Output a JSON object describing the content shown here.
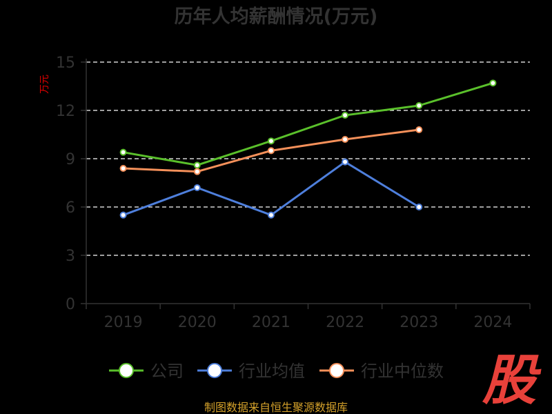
{
  "chart_data": {
    "type": "line",
    "title": "历年人均薪酬情况(万元)",
    "ylabel": "万元",
    "xlabel": "",
    "categories": [
      "2019",
      "2020",
      "2021",
      "2022",
      "2023",
      "2024"
    ],
    "ylim": [
      0,
      15
    ],
    "yticks": [
      0,
      3,
      6,
      9,
      12,
      15
    ],
    "grid": true,
    "legend_position": "bottom",
    "series": [
      {
        "name": "公司",
        "color": "#5ac02b",
        "values": [
          9.4,
          8.6,
          10.1,
          11.7,
          12.3,
          13.7
        ]
      },
      {
        "name": "行业均值",
        "color": "#4e7fdc",
        "values": [
          5.5,
          7.2,
          5.5,
          8.8,
          6.0,
          null
        ]
      },
      {
        "name": "行业中位数",
        "color": "#f5905a",
        "values": [
          8.4,
          8.2,
          9.5,
          10.2,
          10.8,
          null
        ]
      }
    ]
  },
  "footer": {
    "source": "制图数据来自恒生聚源数据库"
  },
  "watermark": "股"
}
